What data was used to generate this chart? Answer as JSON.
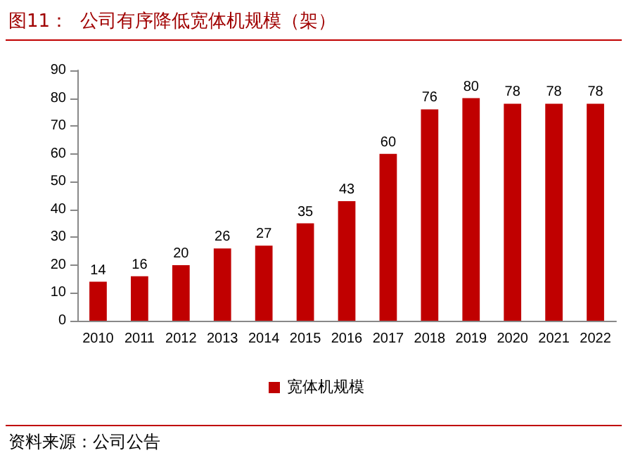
{
  "chart_data": {
    "type": "bar",
    "title": "图11：  公司有序降低宽体机规模（架）",
    "categories": [
      "2010",
      "2011",
      "2012",
      "2013",
      "2014",
      "2015",
      "2016",
      "2017",
      "2018",
      "2019",
      "2020",
      "2021",
      "2022"
    ],
    "series": [
      {
        "name": "宽体机规模",
        "color": "#c00000",
        "values": [
          14,
          16,
          20,
          26,
          27,
          35,
          43,
          60,
          76,
          80,
          78,
          78,
          78
        ]
      }
    ],
    "ylim": [
      0,
      90
    ],
    "yticks": [
      0,
      10,
      20,
      30,
      40,
      50,
      60,
      70,
      80,
      90
    ],
    "grid": false,
    "legend": "bottom",
    "data_labels": true,
    "annotations": [
      "资料来源：公司公告"
    ]
  }
}
